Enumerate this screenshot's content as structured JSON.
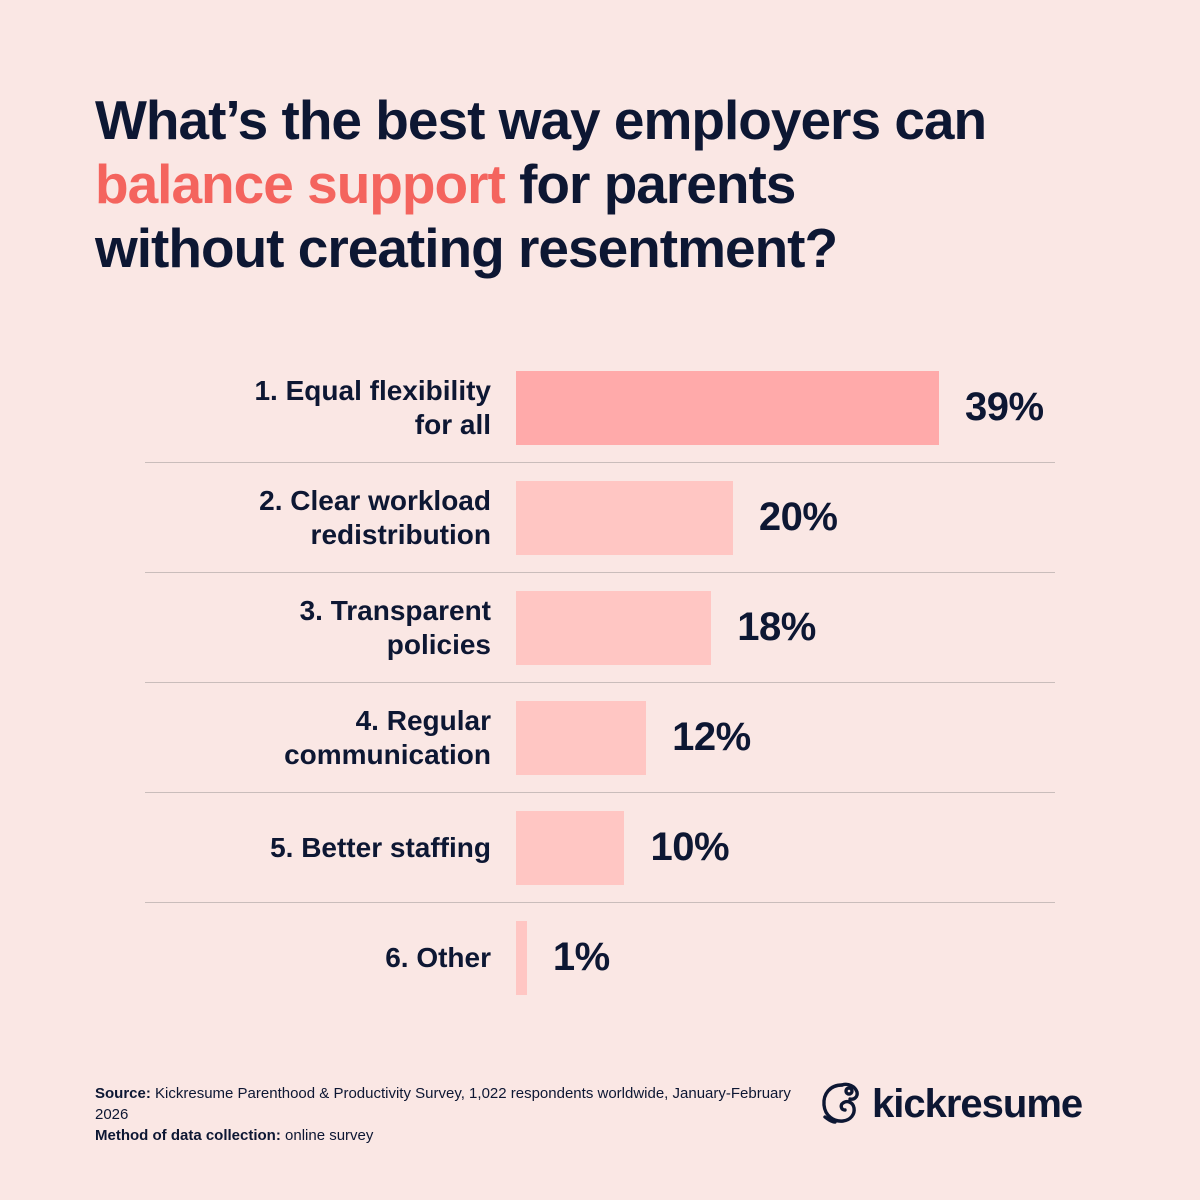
{
  "title": {
    "line1": "What’s the best way employers can",
    "accent": "balance support",
    "line2_rest": " for parents",
    "line3": "without creating resentment?"
  },
  "colors": {
    "background": "#fae7e4",
    "accent": "#f4645e",
    "bar_top": "#ffaaaa",
    "bar": "#ffc6c3",
    "text": "#0d1733"
  },
  "chart_data": {
    "type": "bar",
    "orientation": "horizontal",
    "title": "What’s the best way employers can balance support for parents without creating resentment?",
    "categories": [
      "1. Equal flexibility for all",
      "2. Clear workload redistribution",
      "3. Transparent policies",
      "4. Regular communication",
      "5. Better staffing",
      "6. Other"
    ],
    "values": [
      39,
      20,
      18,
      12,
      10,
      1
    ],
    "value_labels": [
      "39%",
      "20%",
      "18%",
      "12%",
      "10%",
      "1%"
    ],
    "unit": "%",
    "xlabel": "",
    "ylabel": "",
    "grid": false,
    "legend": null
  },
  "rows": [
    {
      "label_line1": "1. Equal flexibility",
      "label_line2": "for all",
      "value": "39%"
    },
    {
      "label_line1": "2. Clear workload",
      "label_line2": "redistribution",
      "value": "20%"
    },
    {
      "label_line1": "3. Transparent",
      "label_line2": "policies",
      "value": "18%"
    },
    {
      "label_line1": "4. Regular",
      "label_line2": "communication",
      "value": "12%"
    },
    {
      "label_line1": "5. Better staffing",
      "label_line2": "",
      "value": "10%"
    },
    {
      "label_line1": "6. Other",
      "label_line2": "",
      "value": "1%"
    }
  ],
  "footer": {
    "source_label": "Source:",
    "source_text": " Kickresume Parenthood & Productivity Survey, 1,022 respondents worldwide, January-February 2026",
    "method_label": "Method of data collection:",
    "method_text": " online survey"
  },
  "logo": {
    "icon": "chameleon-logo-icon",
    "text": "kickresume"
  }
}
